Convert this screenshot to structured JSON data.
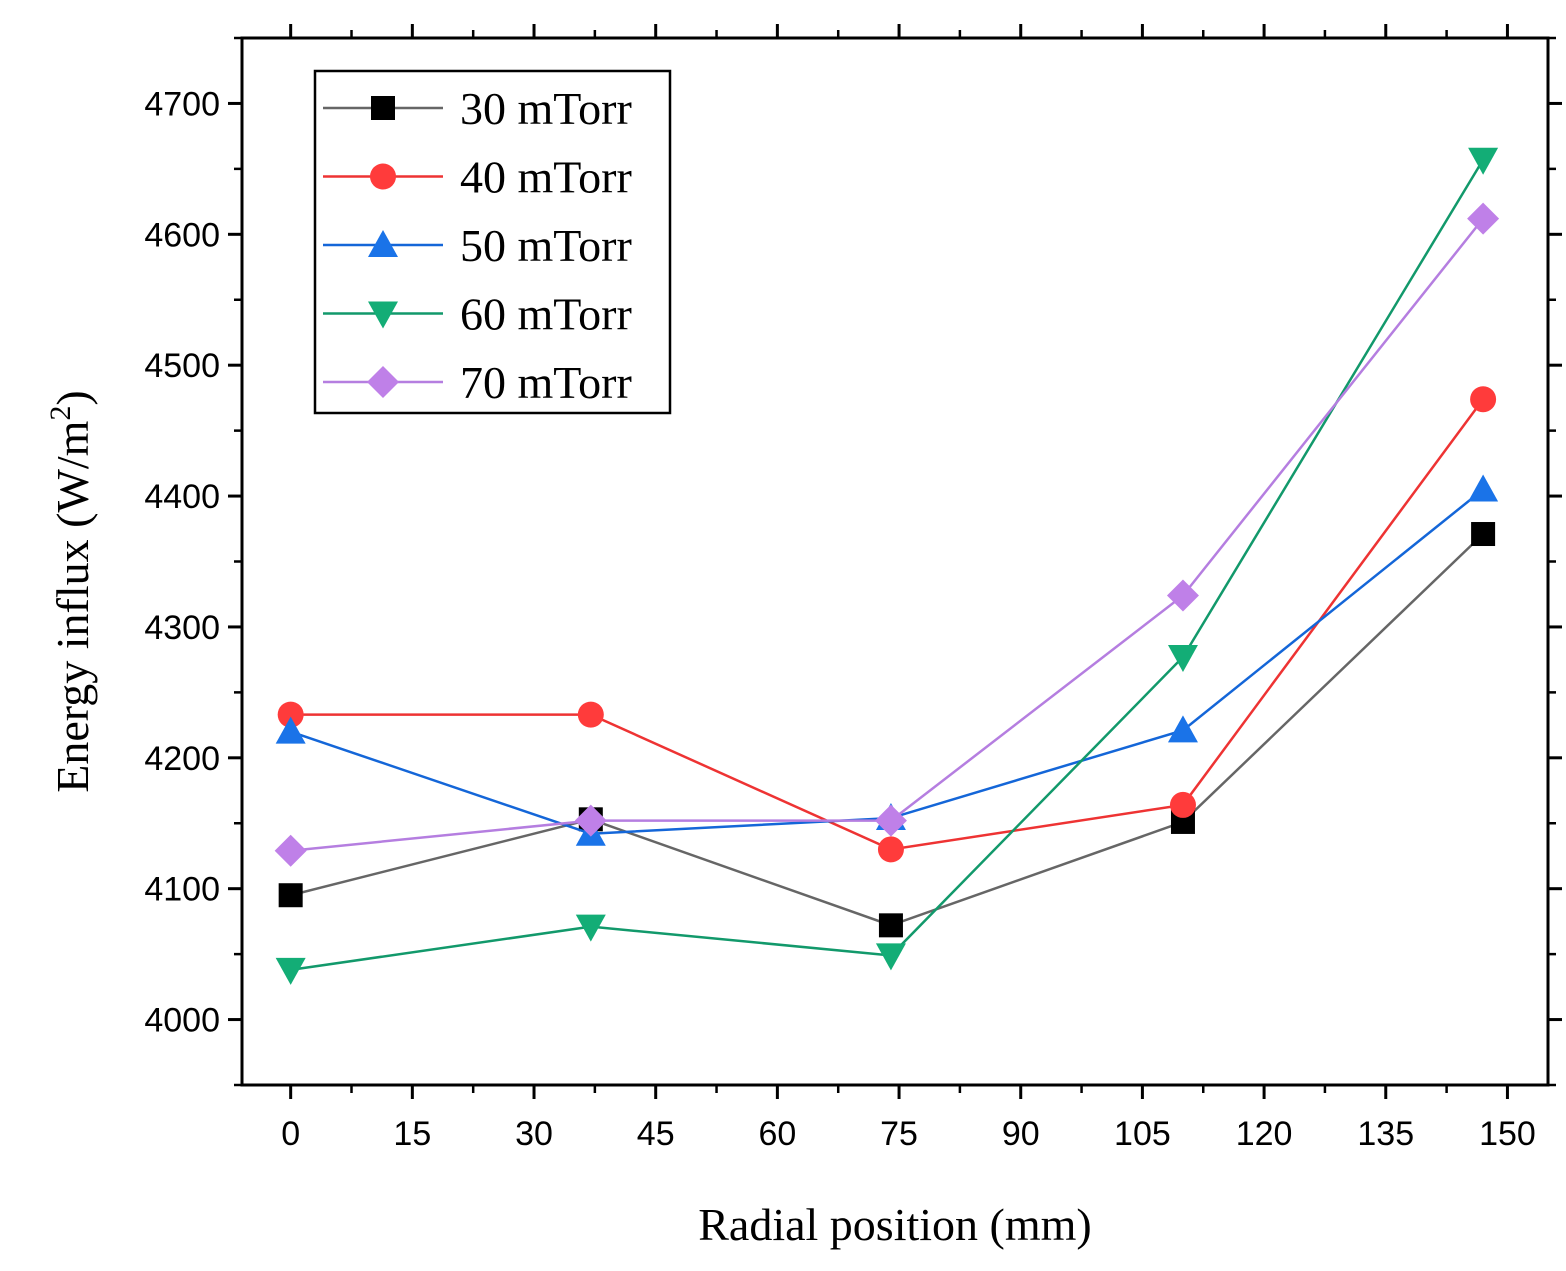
{
  "chart_data": {
    "type": "line",
    "title": "",
    "xlabel": "Radial position (mm)",
    "ylabel_main": "Energy influx (W/m",
    "ylabel_sup": "2",
    "ylabel_close": ")",
    "xlim": [
      -6,
      155
    ],
    "ylim": [
      3950,
      4750
    ],
    "xticks": [
      0,
      15,
      30,
      45,
      60,
      75,
      90,
      105,
      120,
      135,
      150
    ],
    "yticks": [
      4000,
      4100,
      4200,
      4300,
      4400,
      4500,
      4600,
      4700
    ],
    "x": [
      0,
      37,
      74,
      110,
      147
    ],
    "legend_position": "top-left",
    "series": [
      {
        "name": "30 mTorr",
        "color": "#666666",
        "marker_color": "#000000",
        "marker": "square",
        "values": [
          4095,
          4153,
          4072,
          4151,
          4371
        ]
      },
      {
        "name": "40 mTorr",
        "color": "#ee3333",
        "marker_color": "#ff3b3b",
        "marker": "circle",
        "values": [
          4233,
          4233,
          4130,
          4164,
          4474
        ]
      },
      {
        "name": "50 mTorr",
        "color": "#1466d8",
        "marker_color": "#1a73e8",
        "marker": "triangle-up",
        "values": [
          4220,
          4142,
          4154,
          4221,
          4405
        ]
      },
      {
        "name": "60 mTorr",
        "color": "#12996b",
        "marker_color": "#13ad76",
        "marker": "triangle-down",
        "values": [
          4038,
          4071,
          4049,
          4277,
          4657
        ]
      },
      {
        "name": "70 mTorr",
        "color": "#b57ee0",
        "marker_color": "#bf80e8",
        "marker": "diamond",
        "values": [
          4129,
          4152,
          4152,
          4324,
          4612
        ]
      }
    ]
  }
}
